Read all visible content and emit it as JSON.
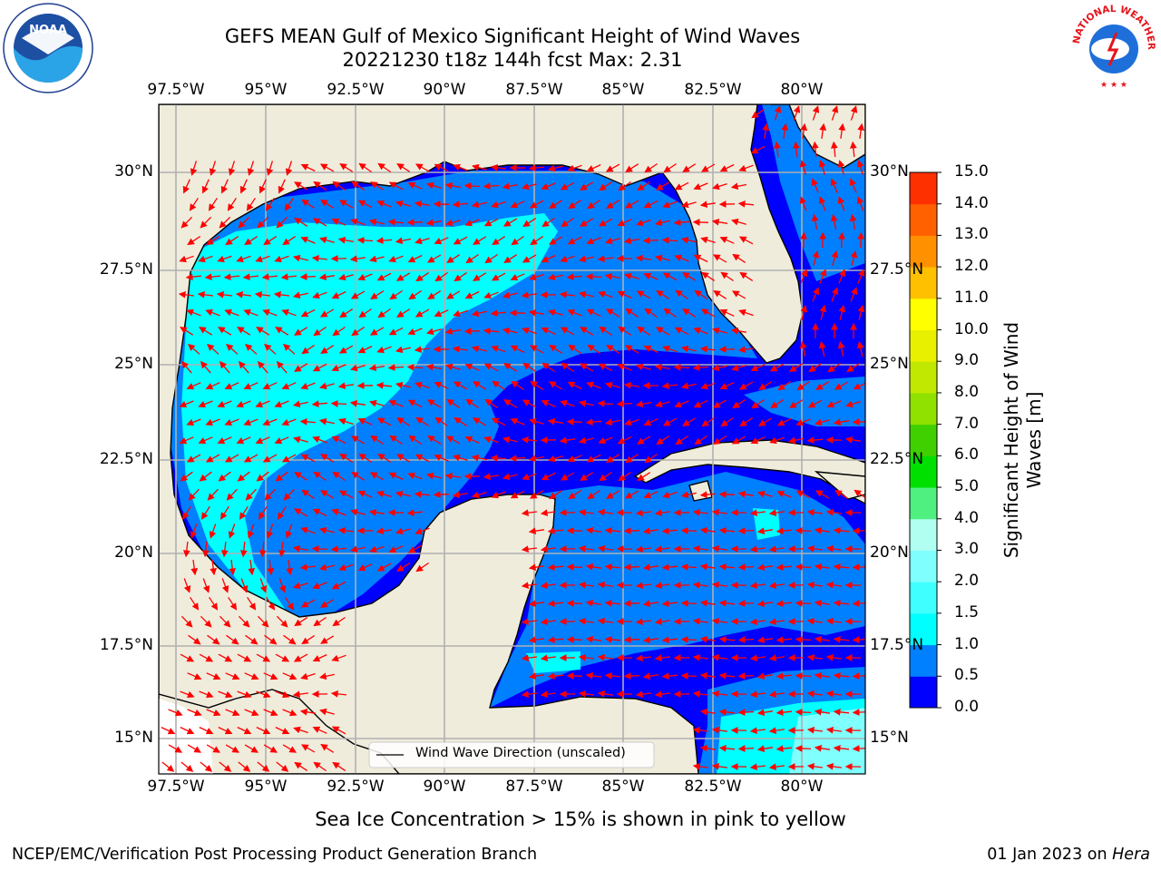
{
  "title": {
    "line1": "GEFS MEAN Gulf of Mexico Significant Height of Wind Waves",
    "line2": "20221230 t18z 144h fcst   Max: 2.31"
  },
  "map": {
    "lon_ticks": [
      "97.5°W",
      "95°W",
      "92.5°W",
      "90°W",
      "87.5°W",
      "85°W",
      "82.5°W",
      "80°W"
    ],
    "lat_ticks": [
      "30°N",
      "27.5°N",
      "25°N",
      "22.5°N",
      "20°N",
      "17.5°N",
      "15°N"
    ],
    "legend": "Wind Wave Direction (unscaled)",
    "land_color": "#efecdc",
    "arrow_color": "#ff0000",
    "grid_color": "#b0b0b0"
  },
  "colorbar": {
    "tick_labels": [
      "0.0",
      "0.5",
      "1.0",
      "1.5",
      "2.0",
      "3.0",
      "4.0",
      "5.0",
      "6.0",
      "7.0",
      "8.0",
      "9.0",
      "10.0",
      "11.0",
      "12.0",
      "13.0",
      "14.0",
      "15.0"
    ],
    "colors": [
      "#0000ff",
      "#0080ff",
      "#00ffff",
      "#40ffff",
      "#80ffff",
      "#b0fff0",
      "#50f080",
      "#00e000",
      "#40d000",
      "#90e000",
      "#c0e800",
      "#e8f000",
      "#ffff00",
      "#ffc000",
      "#ff9000",
      "#ff6000",
      "#ff3000",
      "#ff0000"
    ],
    "label_line1": "Significant Height of Wind",
    "label_line2": "Waves [m]"
  },
  "caption": "Sea Ice Concentration > 15% is shown in pink to yellow",
  "footer": {
    "left": "NCEP/EMC/Verification Post Processing Product Generation Branch",
    "right_date": "01 Jan 2023 on ",
    "right_machine": "Hera"
  },
  "logos": {
    "noaa": "NOAA",
    "nws_text": "NATIONAL WEATHER SERVICE"
  }
}
